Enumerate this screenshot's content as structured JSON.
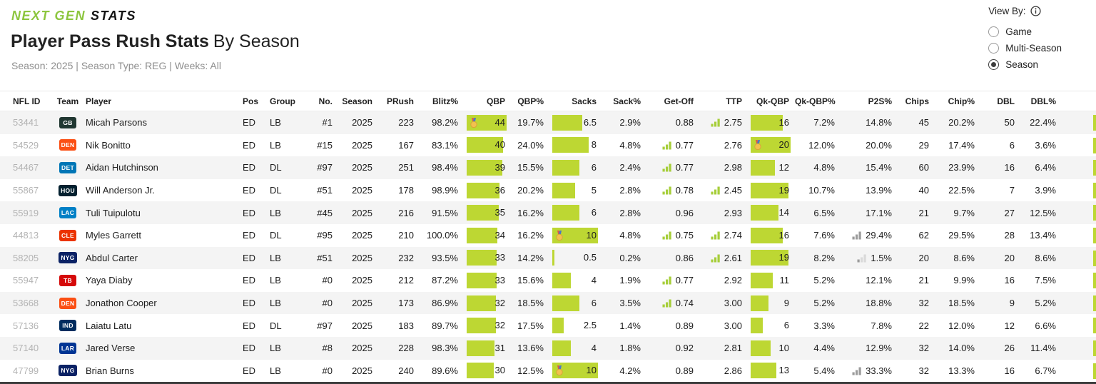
{
  "header": {
    "logo_part1": "NEXT GEN",
    "logo_part2": "STATS",
    "title_bold": "Player Pass Rush Stats",
    "title_rest": "By Season",
    "subtitle": "Season: 2025 | Season Type: REG | Weeks: All"
  },
  "view_by": {
    "label": "View By:",
    "options": [
      {
        "label": "Game",
        "selected": false
      },
      {
        "label": "Multi-Season",
        "selected": false
      },
      {
        "label": "Season",
        "selected": true
      }
    ]
  },
  "colors": {
    "bar_lime": "#bdd733",
    "signal_green": "#a6ce39",
    "signal_gray": "#9b9b9b",
    "signal_gray_light": "#d9d9d9",
    "logo_green": "#8dc63f"
  },
  "table": {
    "columns": [
      "NFL ID",
      "Team",
      "Player",
      "Pos",
      "Group",
      "No.",
      "Season",
      "PRush",
      "Blitz%",
      "QBP",
      "QBP%",
      "Sacks",
      "Sack%",
      "Get-Off",
      "TTP",
      "Qk-QBP",
      "Qk-QBP%",
      "P2S%",
      "Chips",
      "Chip%",
      "DBL",
      "DBL%"
    ],
    "bar_max": {
      "qbp": 44,
      "sacks": 10,
      "qk_qbp": 20
    },
    "rows": [
      {
        "nfl_id": "53441",
        "team": {
          "abbr": "GB",
          "color": "#203731"
        },
        "player": "Micah Parsons",
        "pos": "ED",
        "group": "LB",
        "no": "#1",
        "season": "2025",
        "prush": "223",
        "blitz": "98.2%",
        "qbp": {
          "v": 44,
          "medal": true
        },
        "qbp_pct": "19.7%",
        "sacks": {
          "v": 6.5,
          "medal": false
        },
        "sack_pct": "2.9%",
        "getoff": {
          "v": "0.88",
          "icon": null
        },
        "ttp": {
          "v": "2.75",
          "icon": "green"
        },
        "qk_qbp": {
          "v": 16,
          "medal": false
        },
        "qk_qbp_pct": "7.2%",
        "p2s": {
          "v": "14.8%",
          "icon": null
        },
        "chips": "45",
        "chip_pct": "20.2%",
        "dbl": "50",
        "dbl_pct": "22.4%"
      },
      {
        "nfl_id": "54529",
        "team": {
          "abbr": "DEN",
          "color": "#fb4f14"
        },
        "player": "Nik Bonitto",
        "pos": "ED",
        "group": "LB",
        "no": "#15",
        "season": "2025",
        "prush": "167",
        "blitz": "83.1%",
        "qbp": {
          "v": 40,
          "medal": false
        },
        "qbp_pct": "24.0%",
        "sacks": {
          "v": 8,
          "medal": false
        },
        "sack_pct": "4.8%",
        "getoff": {
          "v": "0.77",
          "icon": "green"
        },
        "ttp": {
          "v": "2.76",
          "icon": null
        },
        "qk_qbp": {
          "v": 20,
          "medal": true
        },
        "qk_qbp_pct": "12.0%",
        "p2s": {
          "v": "20.0%",
          "icon": null
        },
        "chips": "29",
        "chip_pct": "17.4%",
        "dbl": "6",
        "dbl_pct": "3.6%"
      },
      {
        "nfl_id": "54467",
        "team": {
          "abbr": "DET",
          "color": "#0076b6"
        },
        "player": "Aidan Hutchinson",
        "pos": "ED",
        "group": "DL",
        "no": "#97",
        "season": "2025",
        "prush": "251",
        "blitz": "98.4%",
        "qbp": {
          "v": 39,
          "medal": false
        },
        "qbp_pct": "15.5%",
        "sacks": {
          "v": 6,
          "medal": false
        },
        "sack_pct": "2.4%",
        "getoff": {
          "v": "0.77",
          "icon": "green"
        },
        "ttp": {
          "v": "2.98",
          "icon": null
        },
        "qk_qbp": {
          "v": 12,
          "medal": false
        },
        "qk_qbp_pct": "4.8%",
        "p2s": {
          "v": "15.4%",
          "icon": null
        },
        "chips": "60",
        "chip_pct": "23.9%",
        "dbl": "16",
        "dbl_pct": "6.4%"
      },
      {
        "nfl_id": "55867",
        "team": {
          "abbr": "HOU",
          "color": "#03202f"
        },
        "player": "Will Anderson Jr.",
        "pos": "ED",
        "group": "DL",
        "no": "#51",
        "season": "2025",
        "prush": "178",
        "blitz": "98.9%",
        "qbp": {
          "v": 36,
          "medal": false
        },
        "qbp_pct": "20.2%",
        "sacks": {
          "v": 5,
          "medal": false
        },
        "sack_pct": "2.8%",
        "getoff": {
          "v": "0.78",
          "icon": "green"
        },
        "ttp": {
          "v": "2.45",
          "icon": "green"
        },
        "qk_qbp": {
          "v": 19,
          "medal": false
        },
        "qk_qbp_pct": "10.7%",
        "p2s": {
          "v": "13.9%",
          "icon": null
        },
        "chips": "40",
        "chip_pct": "22.5%",
        "dbl": "7",
        "dbl_pct": "3.9%"
      },
      {
        "nfl_id": "55919",
        "team": {
          "abbr": "LAC",
          "color": "#0080c6"
        },
        "player": "Tuli Tuipulotu",
        "pos": "ED",
        "group": "LB",
        "no": "#45",
        "season": "2025",
        "prush": "216",
        "blitz": "91.5%",
        "qbp": {
          "v": 35,
          "medal": false
        },
        "qbp_pct": "16.2%",
        "sacks": {
          "v": 6,
          "medal": false
        },
        "sack_pct": "2.8%",
        "getoff": {
          "v": "0.96",
          "icon": null
        },
        "ttp": {
          "v": "2.93",
          "icon": null
        },
        "qk_qbp": {
          "v": 14,
          "medal": false
        },
        "qk_qbp_pct": "6.5%",
        "p2s": {
          "v": "17.1%",
          "icon": null
        },
        "chips": "21",
        "chip_pct": "9.7%",
        "dbl": "27",
        "dbl_pct": "12.5%"
      },
      {
        "nfl_id": "44813",
        "team": {
          "abbr": "CLE",
          "color": "#eb3300"
        },
        "player": "Myles Garrett",
        "pos": "ED",
        "group": "DL",
        "no": "#95",
        "season": "2025",
        "prush": "210",
        "blitz": "100.0%",
        "qbp": {
          "v": 34,
          "medal": false
        },
        "qbp_pct": "16.2%",
        "sacks": {
          "v": 10,
          "medal": true
        },
        "sack_pct": "4.8%",
        "getoff": {
          "v": "0.75",
          "icon": "green"
        },
        "ttp": {
          "v": "2.74",
          "icon": "green"
        },
        "qk_qbp": {
          "v": 16,
          "medal": false
        },
        "qk_qbp_pct": "7.6%",
        "p2s": {
          "v": "29.4%",
          "icon": "gray"
        },
        "chips": "62",
        "chip_pct": "29.5%",
        "dbl": "28",
        "dbl_pct": "13.4%"
      },
      {
        "nfl_id": "58205",
        "team": {
          "abbr": "NYG",
          "color": "#0b2265"
        },
        "player": "Abdul Carter",
        "pos": "ED",
        "group": "LB",
        "no": "#51",
        "season": "2025",
        "prush": "232",
        "blitz": "93.5%",
        "qbp": {
          "v": 33,
          "medal": false
        },
        "qbp_pct": "14.2%",
        "sacks": {
          "v": 0.5,
          "medal": false
        },
        "sack_pct": "0.2%",
        "getoff": {
          "v": "0.86",
          "icon": null
        },
        "ttp": {
          "v": "2.61",
          "icon": "green"
        },
        "qk_qbp": {
          "v": 19,
          "medal": false
        },
        "qk_qbp_pct": "8.2%",
        "p2s": {
          "v": "1.5%",
          "icon": "gray-low"
        },
        "chips": "20",
        "chip_pct": "8.6%",
        "dbl": "20",
        "dbl_pct": "8.6%"
      },
      {
        "nfl_id": "55947",
        "team": {
          "abbr": "TB",
          "color": "#d50a0a"
        },
        "player": "Yaya Diaby",
        "pos": "ED",
        "group": "LB",
        "no": "#0",
        "season": "2025",
        "prush": "212",
        "blitz": "87.2%",
        "qbp": {
          "v": 33,
          "medal": false
        },
        "qbp_pct": "15.6%",
        "sacks": {
          "v": 4,
          "medal": false
        },
        "sack_pct": "1.9%",
        "getoff": {
          "v": "0.77",
          "icon": "green"
        },
        "ttp": {
          "v": "2.92",
          "icon": null
        },
        "qk_qbp": {
          "v": 11,
          "medal": false
        },
        "qk_qbp_pct": "5.2%",
        "p2s": {
          "v": "12.1%",
          "icon": null
        },
        "chips": "21",
        "chip_pct": "9.9%",
        "dbl": "16",
        "dbl_pct": "7.5%"
      },
      {
        "nfl_id": "53668",
        "team": {
          "abbr": "DEN",
          "color": "#fb4f14"
        },
        "player": "Jonathon Cooper",
        "pos": "ED",
        "group": "LB",
        "no": "#0",
        "season": "2025",
        "prush": "173",
        "blitz": "86.9%",
        "qbp": {
          "v": 32,
          "medal": false
        },
        "qbp_pct": "18.5%",
        "sacks": {
          "v": 6,
          "medal": false
        },
        "sack_pct": "3.5%",
        "getoff": {
          "v": "0.74",
          "icon": "green"
        },
        "ttp": {
          "v": "3.00",
          "icon": null
        },
        "qk_qbp": {
          "v": 9,
          "medal": false
        },
        "qk_qbp_pct": "5.2%",
        "p2s": {
          "v": "18.8%",
          "icon": null
        },
        "chips": "32",
        "chip_pct": "18.5%",
        "dbl": "9",
        "dbl_pct": "5.2%"
      },
      {
        "nfl_id": "57136",
        "team": {
          "abbr": "IND",
          "color": "#002c5f"
        },
        "player": "Laiatu Latu",
        "pos": "ED",
        "group": "DL",
        "no": "#97",
        "season": "2025",
        "prush": "183",
        "blitz": "89.7%",
        "qbp": {
          "v": 32,
          "medal": false
        },
        "qbp_pct": "17.5%",
        "sacks": {
          "v": 2.5,
          "medal": false
        },
        "sack_pct": "1.4%",
        "getoff": {
          "v": "0.89",
          "icon": null
        },
        "ttp": {
          "v": "3.00",
          "icon": null
        },
        "qk_qbp": {
          "v": 6,
          "medal": false
        },
        "qk_qbp_pct": "3.3%",
        "p2s": {
          "v": "7.8%",
          "icon": null
        },
        "chips": "22",
        "chip_pct": "12.0%",
        "dbl": "12",
        "dbl_pct": "6.6%"
      },
      {
        "nfl_id": "57140",
        "team": {
          "abbr": "LAR",
          "color": "#003594"
        },
        "player": "Jared Verse",
        "pos": "ED",
        "group": "LB",
        "no": "#8",
        "season": "2025",
        "prush": "228",
        "blitz": "98.3%",
        "qbp": {
          "v": 31,
          "medal": false
        },
        "qbp_pct": "13.6%",
        "sacks": {
          "v": 4,
          "medal": false
        },
        "sack_pct": "1.8%",
        "getoff": {
          "v": "0.92",
          "icon": null
        },
        "ttp": {
          "v": "2.81",
          "icon": null
        },
        "qk_qbp": {
          "v": 10,
          "medal": false
        },
        "qk_qbp_pct": "4.4%",
        "p2s": {
          "v": "12.9%",
          "icon": null
        },
        "chips": "32",
        "chip_pct": "14.0%",
        "dbl": "26",
        "dbl_pct": "11.4%"
      },
      {
        "nfl_id": "47799",
        "team": {
          "abbr": "NYG",
          "color": "#0b2265"
        },
        "player": "Brian Burns",
        "pos": "ED",
        "group": "LB",
        "no": "#0",
        "season": "2025",
        "prush": "240",
        "blitz": "89.6%",
        "qbp": {
          "v": 30,
          "medal": false
        },
        "qbp_pct": "12.5%",
        "sacks": {
          "v": 10,
          "medal": true
        },
        "sack_pct": "4.2%",
        "getoff": {
          "v": "0.89",
          "icon": null
        },
        "ttp": {
          "v": "2.86",
          "icon": null
        },
        "qk_qbp": {
          "v": 13,
          "medal": false
        },
        "qk_qbp_pct": "5.4%",
        "p2s": {
          "v": "33.3%",
          "icon": "gray"
        },
        "chips": "32",
        "chip_pct": "13.3%",
        "dbl": "16",
        "dbl_pct": "6.7%"
      }
    ]
  }
}
